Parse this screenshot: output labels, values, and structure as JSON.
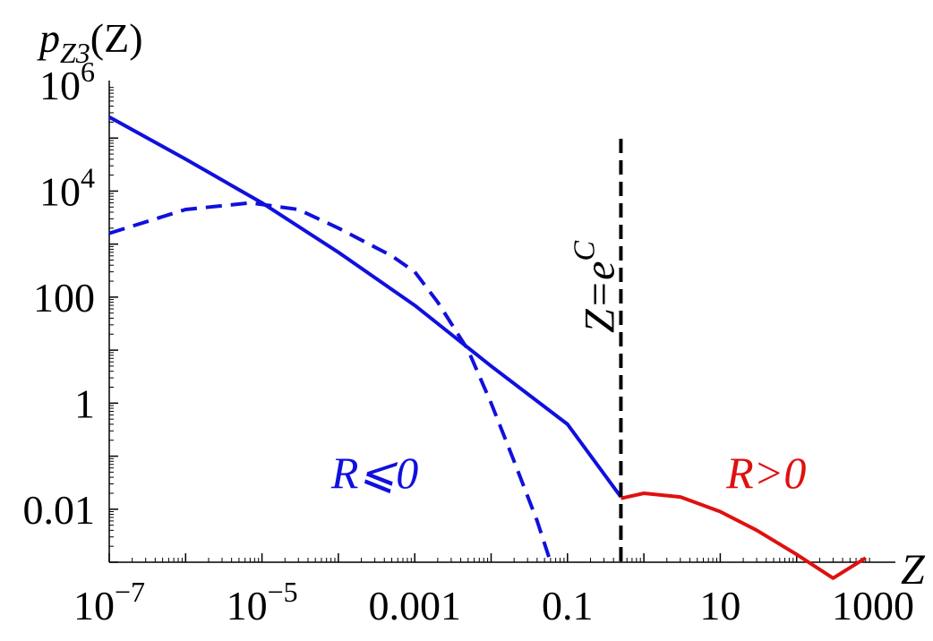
{
  "chart_data": {
    "type": "line",
    "xscale": "log",
    "yscale": "log",
    "xlim": [
      1e-07,
      1000
    ],
    "ylim": [
      0.001,
      1000000
    ],
    "grid": false,
    "ylabel": {
      "base": "p",
      "sub": "Z3",
      "arg": "(Z)"
    },
    "xlabel": "Z",
    "x_ticks": [
      {
        "value": 1e-07,
        "base": "10",
        "exp": "−7"
      },
      {
        "value": 1e-05,
        "base": "10",
        "exp": "−5"
      },
      {
        "value": 0.001,
        "text": "0.001"
      },
      {
        "value": 0.1,
        "text": "0.1"
      },
      {
        "value": 10,
        "text": "10"
      },
      {
        "value": 1000,
        "text": "1000"
      }
    ],
    "y_ticks": [
      {
        "value": 1000000,
        "base": "10",
        "exp": "6"
      },
      {
        "value": 10000,
        "base": "10",
        "exp": "4"
      },
      {
        "value": 100,
        "text": "100"
      },
      {
        "value": 1,
        "text": "1"
      },
      {
        "value": 0.01,
        "text": "0.01"
      }
    ],
    "vline": {
      "x": 0.5,
      "label_main": "Z=e",
      "label_sup": "C",
      "color": "#000000"
    },
    "annotations": [
      {
        "text": "R⩽0",
        "x": 0.0003,
        "y": 0.025,
        "color": "#1010dd"
      },
      {
        "text": "R>0",
        "x": 40,
        "y": 0.025,
        "color": "#e01010"
      }
    ],
    "series": [
      {
        "color": "#1010dd",
        "style": "solid",
        "points": [
          [
            1e-07,
            250000
          ],
          [
            1e-06,
            40000
          ],
          [
            1e-05,
            6000
          ],
          [
            0.0001,
            700
          ],
          [
            0.001,
            70
          ],
          [
            0.01,
            5
          ],
          [
            0.1,
            0.4
          ],
          [
            0.5,
            0.017
          ]
        ]
      },
      {
        "color": "#1010dd",
        "style": "dashed",
        "points": [
          [
            1e-07,
            1600
          ],
          [
            1e-06,
            4500
          ],
          [
            7e-06,
            6000
          ],
          [
            3e-05,
            4500
          ],
          [
            0.0001,
            2000
          ],
          [
            0.0005,
            600
          ],
          [
            0.001,
            300
          ],
          [
            0.002,
            80
          ],
          [
            0.005,
            10
          ],
          [
            0.01,
            1
          ],
          [
            0.02,
            0.08
          ],
          [
            0.04,
            0.006
          ],
          [
            0.06,
            0.001
          ]
        ]
      },
      {
        "color": "#e01010",
        "style": "solid",
        "points": [
          [
            0.5,
            0.016
          ],
          [
            1,
            0.02
          ],
          [
            3,
            0.017
          ],
          [
            10,
            0.009
          ],
          [
            30,
            0.004
          ],
          [
            100,
            0.0014
          ],
          [
            300,
            0.0005
          ],
          [
            800,
            0.0012
          ]
        ]
      }
    ]
  }
}
